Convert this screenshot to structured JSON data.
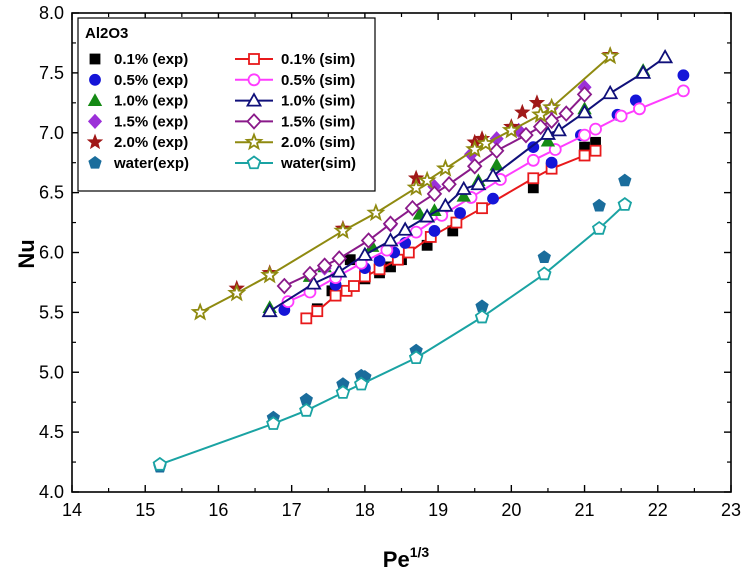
{
  "chart_data": {
    "type": "scatter",
    "title": "",
    "xlabel": "Pe",
    "xlabel_superscript": "1/3",
    "ylabel": "Nu",
    "xlim": [
      14,
      23
    ],
    "ylim": [
      4.0,
      8.0
    ],
    "xticks": [
      "14",
      "15",
      "16",
      "17",
      "18",
      "19",
      "20",
      "21",
      "22",
      "23"
    ],
    "yticks": [
      "4.0",
      "4.5",
      "5.0",
      "5.5",
      "6.0",
      "6.5",
      "7.0",
      "7.5",
      "8.0"
    ],
    "legend_title": "Al2O3",
    "legend_position": "top-left",
    "series": [
      {
        "name": "0.1% (exp)",
        "kind": "exp",
        "marker": "square",
        "color": "#000000",
        "x": [
          17.35,
          17.55,
          17.8,
          18.0,
          18.2,
          18.35,
          18.5,
          18.85,
          19.2,
          20.3,
          20.55,
          21.0,
          21.15
        ],
        "y": [
          5.53,
          5.68,
          5.94,
          5.78,
          5.83,
          5.88,
          5.94,
          6.06,
          6.18,
          6.54,
          6.73,
          6.88,
          6.92
        ]
      },
      {
        "name": "0.1% (sim)",
        "kind": "sim",
        "marker": "square",
        "color": "#e8191b",
        "x": [
          17.2,
          17.35,
          17.6,
          17.75,
          17.85,
          18.0,
          18.2,
          18.45,
          18.6,
          18.9,
          19.25,
          19.6,
          20.3,
          20.55,
          21.0,
          21.15
        ],
        "y": [
          5.45,
          5.51,
          5.64,
          5.68,
          5.72,
          5.8,
          5.86,
          5.94,
          6.0,
          6.13,
          6.25,
          6.37,
          6.62,
          6.7,
          6.81,
          6.85
        ]
      },
      {
        "name": "0.5% (exp)",
        "kind": "exp",
        "marker": "circle",
        "color": "#1515d8",
        "x": [
          16.9,
          17.6,
          18.0,
          18.2,
          18.4,
          18.55,
          18.95,
          19.3,
          19.75,
          20.3,
          20.55,
          20.95,
          21.45,
          21.7,
          22.35
        ],
        "y": [
          5.52,
          5.73,
          5.87,
          5.93,
          6.0,
          6.08,
          6.18,
          6.33,
          6.45,
          6.88,
          6.75,
          6.98,
          7.15,
          7.27,
          7.48
        ]
      },
      {
        "name": "0.5% (sim)",
        "kind": "sim",
        "marker": "circle",
        "color": "#ff3cff",
        "x": [
          16.95,
          17.25,
          17.6,
          17.95,
          18.3,
          18.7,
          19.05,
          19.45,
          19.85,
          20.3,
          20.6,
          21.0,
          21.15,
          21.5,
          21.75,
          22.35
        ],
        "y": [
          5.59,
          5.67,
          5.79,
          5.91,
          6.02,
          6.17,
          6.31,
          6.46,
          6.61,
          6.77,
          6.86,
          6.98,
          7.03,
          7.14,
          7.2,
          7.35
        ]
      },
      {
        "name": "1.0% (exp)",
        "kind": "exp",
        "marker": "triangle",
        "color": "#158a15",
        "x": [
          16.7,
          17.25,
          17.45,
          18.1,
          18.75,
          18.95,
          19.35,
          19.55,
          19.8,
          20.5,
          21.0,
          21.8
        ],
        "y": [
          5.54,
          5.8,
          5.88,
          6.05,
          6.32,
          6.35,
          6.47,
          6.6,
          6.73,
          6.93,
          7.2,
          7.52
        ]
      },
      {
        "name": "1.0% (sim)",
        "kind": "sim",
        "marker": "triangle",
        "color": "#10107a",
        "x": [
          16.7,
          17.3,
          17.65,
          18.0,
          18.35,
          18.55,
          18.85,
          19.1,
          19.35,
          19.55,
          19.75,
          20.5,
          20.65,
          21.0,
          21.35,
          21.8,
          22.1
        ],
        "y": [
          5.51,
          5.74,
          5.84,
          5.98,
          6.1,
          6.19,
          6.3,
          6.39,
          6.53,
          6.57,
          6.64,
          6.99,
          7.02,
          7.17,
          7.33,
          7.5,
          7.63
        ]
      },
      {
        "name": "1.5% (exp)",
        "kind": "exp",
        "marker": "diamond",
        "color": "#9b30d8",
        "x": [
          17.25,
          17.45,
          18.35,
          18.95,
          19.45,
          19.8,
          20.1,
          20.55,
          21.0
        ],
        "y": [
          5.82,
          5.87,
          6.23,
          6.55,
          6.82,
          6.95,
          7.02,
          7.21,
          7.38
        ]
      },
      {
        "name": "1.5% (sim)",
        "kind": "sim",
        "marker": "diamond",
        "color": "#8a1a8a",
        "x": [
          16.9,
          17.25,
          17.45,
          17.65,
          18.05,
          18.35,
          18.65,
          18.95,
          19.15,
          19.5,
          19.8,
          20.2,
          20.4,
          20.55,
          20.75,
          21.0
        ],
        "y": [
          5.72,
          5.82,
          5.89,
          5.95,
          6.1,
          6.24,
          6.37,
          6.49,
          6.57,
          6.72,
          6.85,
          6.98,
          7.05,
          7.1,
          7.16,
          7.32
        ]
      },
      {
        "name": "2.0% (exp)",
        "kind": "exp",
        "marker": "star",
        "color": "#a01818",
        "x": [
          16.25,
          16.7,
          17.7,
          18.7,
          19.5,
          19.6,
          20.0,
          20.15,
          20.35,
          21.35
        ],
        "y": [
          5.7,
          5.83,
          6.2,
          6.62,
          6.92,
          6.95,
          7.05,
          7.17,
          7.25,
          7.65
        ]
      },
      {
        "name": "2.0% (sim)",
        "kind": "sim",
        "marker": "star",
        "color": "#8f8a10",
        "x": [
          15.75,
          16.25,
          16.7,
          17.7,
          18.15,
          18.7,
          18.85,
          19.1,
          19.5,
          19.65,
          20.0,
          20.4,
          20.55,
          21.35
        ],
        "y": [
          5.5,
          5.66,
          5.81,
          6.18,
          6.33,
          6.54,
          6.6,
          6.7,
          6.86,
          6.91,
          7.02,
          7.15,
          7.21,
          7.64
        ]
      },
      {
        "name": "water(exp)",
        "kind": "exp",
        "marker": "pentagon",
        "color": "#1a6d9c",
        "x": [
          15.2,
          16.75,
          17.2,
          17.7,
          17.95,
          18.0,
          18.7,
          19.6,
          20.45,
          21.2,
          21.55
        ],
        "y": [
          4.21,
          4.62,
          4.77,
          4.9,
          4.97,
          4.96,
          5.18,
          5.55,
          5.96,
          6.39,
          6.6
        ]
      },
      {
        "name": "water(sim)",
        "kind": "sim",
        "marker": "pentagon",
        "color": "#1aa3a3",
        "x": [
          15.2,
          16.75,
          17.2,
          17.7,
          17.95,
          18.7,
          19.6,
          20.45,
          21.2,
          21.55
        ],
        "y": [
          4.23,
          4.57,
          4.68,
          4.83,
          4.9,
          5.12,
          5.46,
          5.82,
          6.2,
          6.4
        ]
      }
    ]
  }
}
